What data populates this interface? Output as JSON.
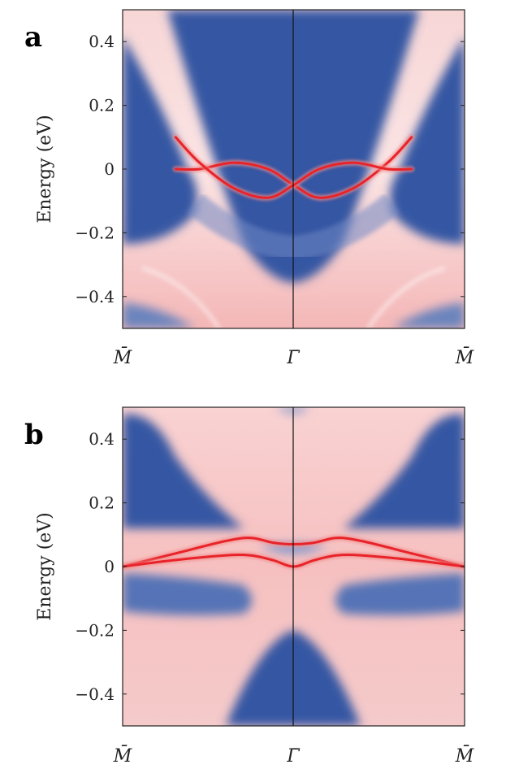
{
  "chart_data": [
    {
      "type": "heatmap",
      "panel": "a",
      "ylabel": "Energy (eV)",
      "xlabel": "",
      "x_ticks": [
        "M̄",
        "Γ̄",
        "M̄"
      ],
      "y_ticks": [
        "0.4",
        "0.2",
        "0",
        "−0.2",
        "−0.4"
      ],
      "y_tick_values": [
        0.4,
        0.2,
        0,
        -0.2,
        -0.4
      ],
      "ylim": [
        -0.5,
        0.5
      ],
      "xlim": [
        -1,
        1
      ],
      "colors": {
        "bulk_gap": "#3a5aa6",
        "bulk_band": "#f6c9c9",
        "surface_state": "#e8242a"
      },
      "surface_bands": [
        {
          "x": [
            -0.69,
            -0.55,
            -0.35,
            -0.15,
            0.0,
            0.15,
            0.35,
            0.55,
            0.69
          ],
          "y": [
            0.0,
            0.0,
            0.02,
            0.0,
            -0.05,
            -0.09,
            -0.06,
            0.02,
            0.1
          ]
        },
        {
          "x": [
            -0.69,
            -0.55,
            -0.35,
            -0.15,
            0.0,
            0.15,
            0.35,
            0.55,
            0.69
          ],
          "y": [
            0.1,
            0.02,
            -0.06,
            -0.09,
            -0.05,
            0.0,
            0.02,
            0.0,
            0.0
          ]
        }
      ]
    },
    {
      "type": "heatmap",
      "panel": "b",
      "ylabel": "Energy (eV)",
      "xlabel": "",
      "x_ticks": [
        "M̄",
        "Γ̄",
        "M̄"
      ],
      "y_ticks": [
        "0.4",
        "0.2",
        "0",
        "−0.2",
        "−0.4"
      ],
      "y_tick_values": [
        0.4,
        0.2,
        0,
        -0.2,
        -0.4
      ],
      "ylim": [
        -0.5,
        0.5
      ],
      "xlim": [
        -1,
        1
      ],
      "colors": {
        "bulk_gap": "#3a5aa6",
        "bulk_band": "#f6c9c9",
        "surface_state": "#e8242a"
      },
      "surface_bands": [
        {
          "x": [
            -1.0,
            -0.7,
            -0.4,
            -0.25,
            -0.12,
            0.0,
            0.12,
            0.25,
            0.4,
            0.7,
            1.0
          ],
          "y": [
            0.0,
            0.04,
            0.08,
            0.09,
            0.075,
            0.07,
            0.075,
            0.09,
            0.08,
            0.04,
            0.0
          ]
        },
        {
          "x": [
            -1.0,
            -0.7,
            -0.4,
            -0.25,
            -0.12,
            0.0,
            0.12,
            0.25,
            0.4,
            0.7,
            1.0
          ],
          "y": [
            0.0,
            0.02,
            0.035,
            0.035,
            0.02,
            0.0,
            0.02,
            0.035,
            0.035,
            0.02,
            0.0
          ]
        }
      ]
    }
  ]
}
